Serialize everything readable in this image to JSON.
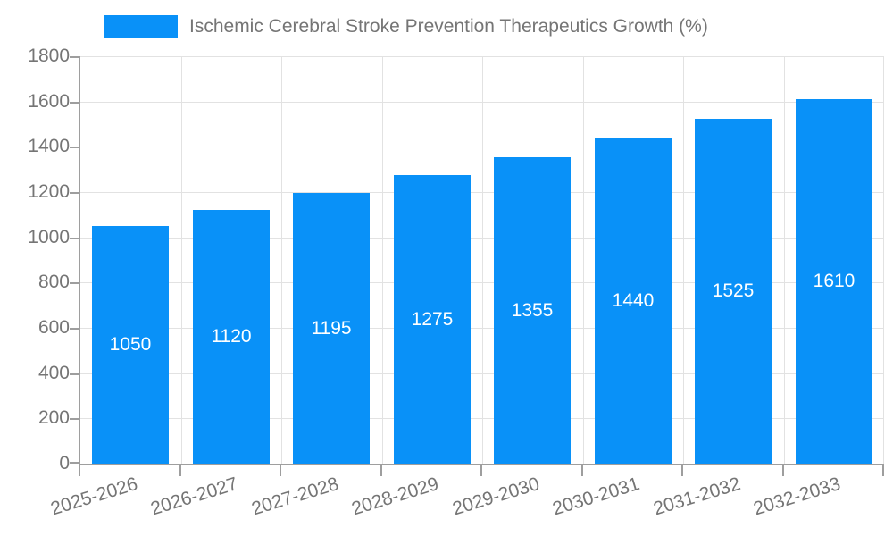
{
  "legend": {
    "label": "Ischemic Cerebral Stroke Prevention Therapeutics Growth (%)"
  },
  "colors": {
    "bar": "#0991f8",
    "grid": "#e2e2e2",
    "axis": "#9e9e9e",
    "text": "#757575",
    "value_label": "#ffffff"
  },
  "chart_data": {
    "type": "bar",
    "title": "Ischemic Cerebral Stroke Prevention Therapeutics Growth (%)",
    "categories": [
      "2025-2026",
      "2026-2027",
      "2027-2028",
      "2028-2029",
      "2029-2030",
      "2030-2031",
      "2031-2032",
      "2032-2033"
    ],
    "values": [
      1050,
      1120,
      1195,
      1275,
      1355,
      1440,
      1525,
      1610
    ],
    "series": [
      {
        "name": "Ischemic Cerebral Stroke Prevention Therapeutics Growth (%)",
        "values": [
          1050,
          1120,
          1195,
          1275,
          1355,
          1440,
          1525,
          1610
        ]
      }
    ],
    "xlabel": "",
    "ylabel": "",
    "ylim": [
      0,
      1800
    ],
    "yticks": [
      0,
      200,
      400,
      600,
      800,
      1000,
      1200,
      1400,
      1600,
      1800
    ],
    "grid": true,
    "gridlines": "horizontal-and-vertical",
    "legend_position": "top",
    "value_labels": "inside-center",
    "xlabel_rotation_deg": -17
  }
}
